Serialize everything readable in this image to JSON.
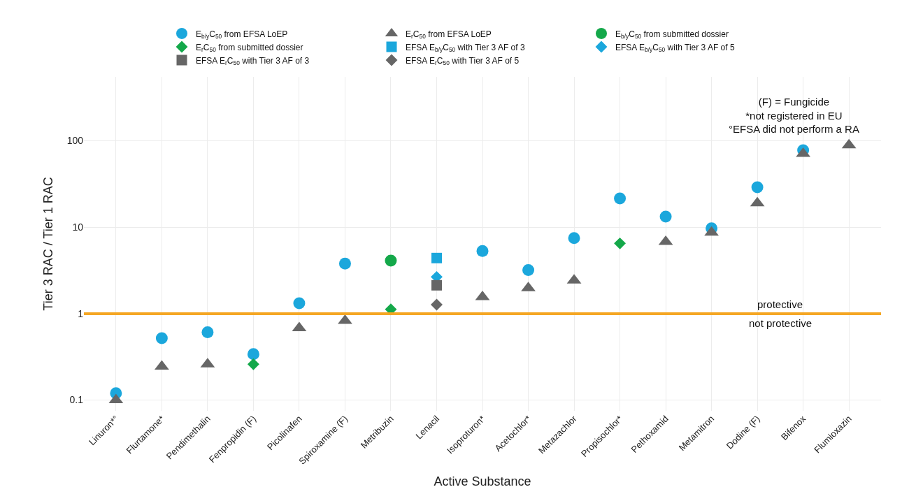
{
  "chart_data": {
    "type": "scatter",
    "xlabel": "Active Substance",
    "ylabel": "Tier 3 RAC / Tier 1 RAC",
    "categories": [
      "Linuron*°",
      "Flurtamone*",
      "Pendimethalin",
      "Fenpropidin (F)",
      "Picolinafen",
      "Spiroxamine (F)",
      "Metribuzin",
      "Lenacil",
      "Isoproturon*",
      "Acetochlor*",
      "Metazachlor",
      "Propisochlor*",
      "Pethoxamid",
      "Metamitron",
      "Dodine (F)",
      "Bifenox",
      "Flumioxazin"
    ],
    "series": [
      {
        "name": "E$_{b/y}$C$_{50}$ from EFSA LoEP",
        "color": "#1ba7dc",
        "marker": "circle",
        "values": [
          0.12,
          0.52,
          0.61,
          0.34,
          1.32,
          3.8,
          null,
          null,
          5.3,
          3.2,
          7.5,
          21.5,
          13.3,
          9.7,
          29,
          78,
          null
        ]
      },
      {
        "name": "E$_{r}$C$_{50}$ from EFSA LoEP",
        "color": "#666666",
        "marker": "triangle",
        "values": [
          0.1,
          0.245,
          0.26,
          null,
          0.68,
          0.83,
          null,
          null,
          1.56,
          1.98,
          2.43,
          null,
          6.8,
          8.7,
          19,
          71,
          89
        ]
      },
      {
        "name": "E$_{b/y}$C$_{50}$ from submitted dossier",
        "color": "#14a84a",
        "marker": "circle",
        "values": [
          null,
          null,
          null,
          null,
          null,
          null,
          4.1,
          null,
          null,
          null,
          null,
          null,
          null,
          null,
          null,
          null,
          null
        ]
      },
      {
        "name": "E$_{r}$C$_{50}$ from submitted dossier",
        "color": "#14a84a",
        "marker": "diamond",
        "values": [
          null,
          null,
          null,
          0.26,
          null,
          null,
          1.12,
          null,
          null,
          null,
          null,
          6.5,
          null,
          null,
          null,
          null,
          null
        ]
      },
      {
        "name": "EFSA E$_{b/y}$C$_{50}$ with Tier 3 AF of 3",
        "color": "#1ba7dc",
        "marker": "square",
        "values": [
          null,
          null,
          null,
          null,
          null,
          null,
          null,
          4.4,
          null,
          null,
          null,
          null,
          null,
          null,
          null,
          null,
          null
        ]
      },
      {
        "name": "EFSA E$_{b/y}$C$_{50}$ with Tier 3 AF of 5",
        "color": "#1ba7dc",
        "marker": "diamond",
        "values": [
          null,
          null,
          null,
          null,
          null,
          null,
          null,
          2.66,
          null,
          null,
          null,
          null,
          null,
          null,
          null,
          null,
          null
        ]
      },
      {
        "name": "EFSA E$_{r}$C$_{50}$ with Tier 3 AF of 3",
        "color": "#666666",
        "marker": "square",
        "values": [
          null,
          null,
          null,
          null,
          null,
          null,
          null,
          2.13,
          null,
          null,
          null,
          null,
          null,
          null,
          null,
          null,
          null
        ]
      },
      {
        "name": "EFSA E$_{r}$C$_{50}$ with Tier 3 AF of 5",
        "color": "#666666",
        "marker": "diamond",
        "values": [
          null,
          null,
          null,
          null,
          null,
          null,
          null,
          1.27,
          null,
          null,
          null,
          null,
          null,
          null,
          null,
          null,
          null
        ]
      }
    ],
    "log": "y",
    "ylim": [
      0.075,
      550
    ],
    "yticks": [
      {
        "value": 0.1,
        "label": "0.1"
      },
      1,
      10,
      100
    ],
    "ref_lines": [
      {
        "axis": "y",
        "value": 1,
        "color": "#f5a623"
      }
    ],
    "annotations": [
      "(F) = Fungicide\n*not registered in EU\n°EFSA did not perform a RA",
      "protective",
      "not protective"
    ],
    "grid": true,
    "legend": "top"
  }
}
